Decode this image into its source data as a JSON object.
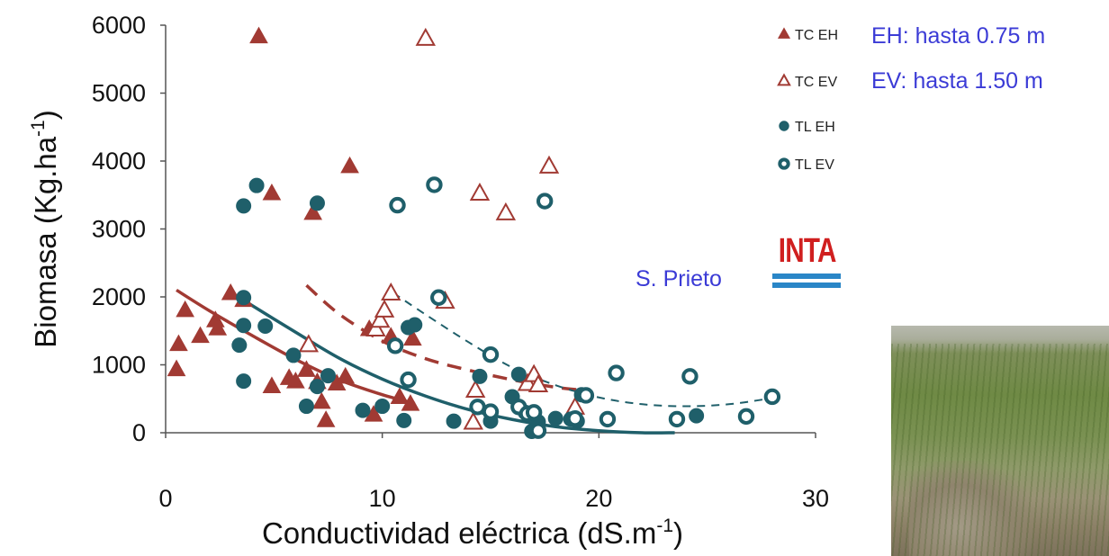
{
  "chart_data": {
    "type": "scatter",
    "title": "",
    "xlabel": "Conductividad eléctrica (dS.m",
    "xlabel_sup": "-1",
    "xlabel_end": ")",
    "ylabel": "Biomasa (Kg.ha",
    "ylabel_sup": "-1",
    "ylabel_end": ")",
    "xlim": [
      0,
      30
    ],
    "ylim": [
      0,
      6000
    ],
    "xticks": [
      "0",
      "10",
      "20",
      "30"
    ],
    "yticks": [
      "0",
      "1000",
      "2000",
      "3000",
      "4000",
      "5000",
      "6000"
    ],
    "grid": false,
    "legend_position": "top-right",
    "series": [
      {
        "name": "TC EH",
        "marker": "triangle-filled",
        "color": "#a13a33",
        "points": [
          [
            0.5,
            930
          ],
          [
            0.6,
            1300
          ],
          [
            0.9,
            1800
          ],
          [
            1.6,
            1420
          ],
          [
            2.3,
            1650
          ],
          [
            2.4,
            1530
          ],
          [
            3.0,
            2050
          ],
          [
            3.6,
            1950
          ],
          [
            4.3,
            5830
          ],
          [
            4.9,
            680
          ],
          [
            4.9,
            3520
          ],
          [
            5.7,
            800
          ],
          [
            6.0,
            750
          ],
          [
            6.5,
            920
          ],
          [
            6.8,
            3230
          ],
          [
            7.0,
            740
          ],
          [
            7.2,
            450
          ],
          [
            7.4,
            180
          ],
          [
            7.9,
            720
          ],
          [
            8.3,
            820
          ],
          [
            8.5,
            3920
          ],
          [
            9.4,
            1520
          ],
          [
            9.6,
            260
          ],
          [
            10.4,
            1410
          ],
          [
            10.8,
            520
          ],
          [
            11.3,
            420
          ],
          [
            11.4,
            1380
          ]
        ],
        "fit": [
          [
            0.5,
            2100
          ],
          [
            2,
            1800
          ],
          [
            4,
            1430
          ],
          [
            6,
            1080
          ],
          [
            8,
            780
          ],
          [
            10,
            560
          ],
          [
            11.5,
            430
          ]
        ]
      },
      {
        "name": "TC EV",
        "marker": "triangle-open",
        "color": "#a13a33",
        "points": [
          [
            6.6,
            1290
          ],
          [
            9.7,
            1520
          ],
          [
            9.9,
            1650
          ],
          [
            10.1,
            1800
          ],
          [
            10.4,
            2050
          ],
          [
            12.0,
            5800
          ],
          [
            12.9,
            1930
          ],
          [
            14.2,
            150
          ],
          [
            14.3,
            620
          ],
          [
            14.5,
            3520
          ],
          [
            15.7,
            3230
          ],
          [
            16.7,
            720
          ],
          [
            17.0,
            850
          ],
          [
            17.2,
            700
          ],
          [
            17.7,
            3920
          ],
          [
            18.9,
            370
          ]
        ],
        "fit": [
          [
            6.5,
            2170
          ],
          [
            8,
            1750
          ],
          [
            10,
            1350
          ],
          [
            12,
            1090
          ],
          [
            14,
            920
          ],
          [
            16,
            780
          ],
          [
            18,
            670
          ],
          [
            19.5,
            620
          ]
        ]
      },
      {
        "name": "TL EH",
        "marker": "circle-filled",
        "color": "#1f5f6a",
        "points": [
          [
            3.4,
            1290
          ],
          [
            3.6,
            760
          ],
          [
            3.6,
            1990
          ],
          [
            3.6,
            1580
          ],
          [
            3.6,
            3340
          ],
          [
            4.2,
            3640
          ],
          [
            4.6,
            1570
          ],
          [
            5.9,
            1140
          ],
          [
            6.5,
            390
          ],
          [
            7.0,
            3380
          ],
          [
            7.0,
            680
          ],
          [
            7.5,
            840
          ],
          [
            9.1,
            330
          ],
          [
            10.0,
            390
          ],
          [
            11.0,
            180
          ],
          [
            11.2,
            1550
          ],
          [
            11.5,
            1590
          ],
          [
            13.3,
            170
          ],
          [
            14.5,
            830
          ],
          [
            15.0,
            170
          ],
          [
            16.0,
            530
          ],
          [
            16.3,
            860
          ],
          [
            16.6,
            300
          ],
          [
            16.9,
            20
          ],
          [
            17.2,
            160
          ],
          [
            18.0,
            210
          ],
          [
            18.7,
            200
          ],
          [
            19.0,
            170
          ],
          [
            19.2,
            560
          ],
          [
            24.5,
            250
          ]
        ],
        "fit": [
          [
            3.6,
            1950
          ],
          [
            6,
            1480
          ],
          [
            8,
            1100
          ],
          [
            10,
            790
          ],
          [
            12,
            540
          ],
          [
            14,
            340
          ],
          [
            16,
            195
          ],
          [
            18,
            90
          ],
          [
            20,
            30
          ],
          [
            22,
            0
          ],
          [
            23.5,
            0
          ]
        ]
      },
      {
        "name": "TL EV",
        "marker": "circle-open",
        "color": "#1f5f6a",
        "points": [
          [
            10.6,
            1280
          ],
          [
            10.7,
            3350
          ],
          [
            11.2,
            780
          ],
          [
            12.4,
            3650
          ],
          [
            12.6,
            1990
          ],
          [
            14.4,
            380
          ],
          [
            15.0,
            1150
          ],
          [
            15.0,
            310
          ],
          [
            16.3,
            380
          ],
          [
            16.7,
            280
          ],
          [
            17.0,
            300
          ],
          [
            17.2,
            30
          ],
          [
            17.5,
            3410
          ],
          [
            18.9,
            210
          ],
          [
            19.4,
            550
          ],
          [
            20.4,
            200
          ],
          [
            20.8,
            880
          ],
          [
            23.6,
            200
          ],
          [
            24.2,
            830
          ],
          [
            26.8,
            240
          ],
          [
            28.0,
            530
          ]
        ],
        "fit": [
          [
            10.5,
            2060
          ],
          [
            12,
            1740
          ],
          [
            14,
            1330
          ],
          [
            16,
            960
          ],
          [
            18,
            700
          ],
          [
            20,
            520
          ],
          [
            22,
            420
          ],
          [
            24,
            390
          ],
          [
            26,
            420
          ],
          [
            28,
            510
          ]
        ]
      }
    ]
  },
  "notes": {
    "eh": "EH: hasta 0.75 m",
    "ev": "EV: hasta 1.50 m",
    "credit": "S. Prieto",
    "logo_text": "INTA"
  }
}
